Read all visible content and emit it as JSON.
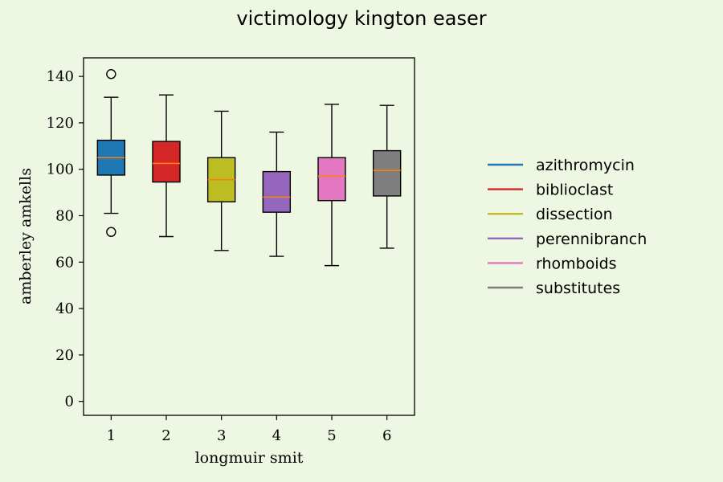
{
  "chart_data": {
    "type": "boxplot",
    "title": "victimology kington easer",
    "xlabel": "longmuir smit",
    "ylabel": "amberley amkells",
    "ylim": [
      -6,
      148
    ],
    "yticks": [
      0,
      20,
      40,
      60,
      80,
      100,
      120,
      140
    ],
    "categories": [
      "1",
      "2",
      "3",
      "4",
      "5",
      "6"
    ],
    "grid": false,
    "legend_position": "right",
    "median_color": "#ff7f0e",
    "series": [
      {
        "name": "azithromycin",
        "color": "#1f77b4",
        "whisker_low": 81,
        "q1": 97.5,
        "median": 105,
        "q3": 112.5,
        "whisker_high": 131,
        "outliers": [
          141,
          73
        ]
      },
      {
        "name": "biblioclast",
        "color": "#d62728",
        "whisker_low": 71,
        "q1": 94.5,
        "median": 102.5,
        "q3": 112,
        "whisker_high": 132,
        "outliers": []
      },
      {
        "name": "dissection",
        "color": "#bcbd22",
        "whisker_low": 65,
        "q1": 86,
        "median": 95.5,
        "q3": 105,
        "whisker_high": 125,
        "outliers": []
      },
      {
        "name": "perennibranch",
        "color": "#9467bd",
        "whisker_low": 62.5,
        "q1": 81.5,
        "median": 88,
        "q3": 99,
        "whisker_high": 116,
        "outliers": []
      },
      {
        "name": "rhomboids",
        "color": "#e377c2",
        "whisker_low": 58.5,
        "q1": 86.5,
        "median": 97,
        "q3": 105,
        "whisker_high": 128,
        "outliers": []
      },
      {
        "name": "substitutes",
        "color": "#7f7f7f",
        "whisker_low": 66,
        "q1": 88.5,
        "median": 99.5,
        "q3": 108,
        "whisker_high": 127.5,
        "outliers": []
      }
    ]
  }
}
